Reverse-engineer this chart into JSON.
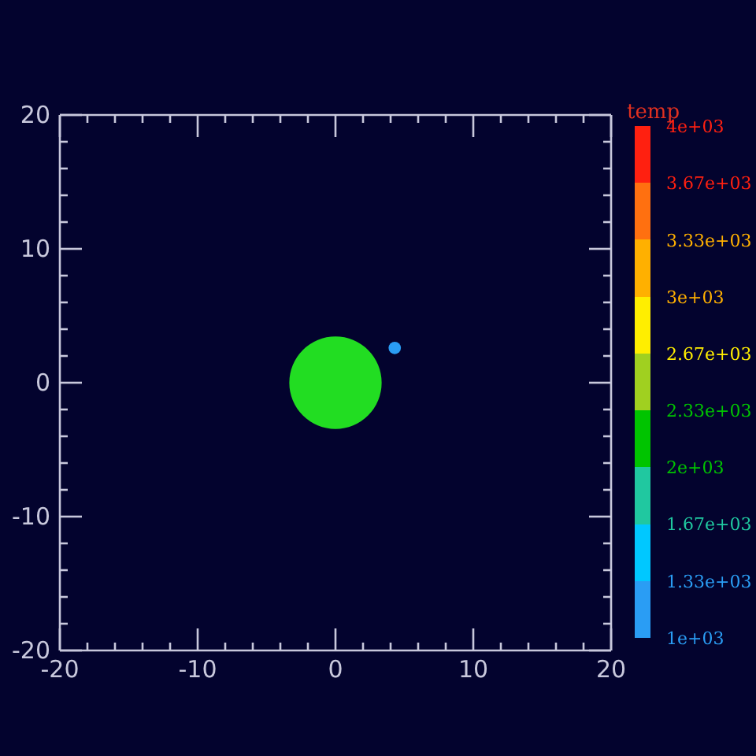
{
  "chart_data": {
    "type": "bubble",
    "clabel": "temp",
    "x": [
      0,
      4.3
    ],
    "values": [
      0,
      2.6
    ],
    "sizes": [
      1,
      0.018
    ],
    "colors": [
      "#22dd22",
      "#2a9df4"
    ],
    "xlim": [
      -20,
      20
    ],
    "ylim": [
      -20,
      20
    ],
    "xticks": [
      -20,
      {
        "value": -18,
        "label": null
      },
      {
        "value": -16,
        "label": null
      },
      {
        "value": -14,
        "label": null
      },
      {
        "value": -12,
        "label": null
      },
      -10,
      {
        "value": -8,
        "label": null
      },
      {
        "value": -6,
        "label": null
      },
      {
        "value": -4,
        "label": null
      },
      {
        "value": -2,
        "label": null
      },
      0,
      {
        "value": 2,
        "label": null
      },
      {
        "value": 4,
        "label": null
      },
      {
        "value": 6,
        "label": null
      },
      {
        "value": 8,
        "label": null
      },
      10,
      {
        "value": 12,
        "label": null
      },
      {
        "value": 14,
        "label": null
      },
      {
        "value": 16,
        "label": null
      },
      {
        "value": 18,
        "label": null
      },
      20
    ],
    "yticks": [
      -20,
      {
        "value": -18,
        "label": null
      },
      {
        "value": -16,
        "label": null
      },
      {
        "value": -14,
        "label": null
      },
      {
        "value": -12,
        "label": null
      },
      -10,
      {
        "value": -8,
        "label": null
      },
      {
        "value": -6,
        "label": null
      },
      {
        "value": -4,
        "label": null
      },
      {
        "value": -2,
        "label": null
      },
      0,
      {
        "value": 2,
        "label": null
      },
      {
        "value": 4,
        "label": null
      },
      {
        "value": 6,
        "label": null
      },
      {
        "value": 8,
        "label": null
      },
      10,
      {
        "value": 12,
        "label": null
      },
      {
        "value": 14,
        "label": null
      },
      {
        "value": 16,
        "label": null
      },
      {
        "value": 18,
        "label": null
      },
      20
    ],
    "clim": [
      1000,
      4000
    ],
    "cticks": [
      {
        "value": 1000,
        "label": "1e+03"
      },
      {
        "value": 1333,
        "label": "1.33e+03"
      },
      {
        "value": 1667,
        "label": "1.67e+03"
      },
      {
        "value": 2000,
        "label": "2e+03"
      },
      {
        "value": 2333,
        "label": "2.33e+03"
      },
      {
        "value": 2667,
        "label": "2.67e+03"
      },
      {
        "value": 3000,
        "label": "3e+03"
      },
      {
        "value": 3333,
        "label": "3.33e+03"
      },
      {
        "value": 3667,
        "label": "3.67e+03"
      },
      {
        "value": 4000,
        "label": "4e+03"
      }
    ]
  }
}
